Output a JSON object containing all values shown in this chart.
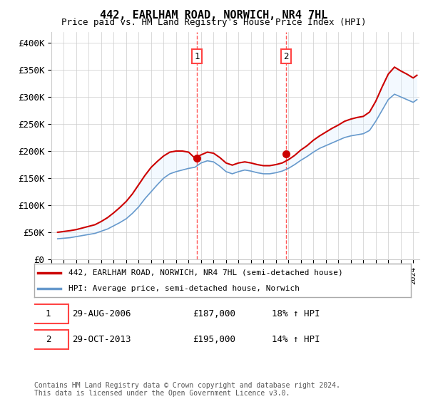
{
  "title": "442, EARLHAM ROAD, NORWICH, NR4 7HL",
  "subtitle": "Price paid vs. HM Land Registry's House Price Index (HPI)",
  "ylabel_ticks": [
    "£0",
    "£50K",
    "£100K",
    "£150K",
    "£200K",
    "£250K",
    "£300K",
    "£350K",
    "£400K"
  ],
  "ytick_values": [
    0,
    50000,
    100000,
    150000,
    200000,
    250000,
    300000,
    350000,
    400000
  ],
  "ylim": [
    0,
    420000
  ],
  "sale1_date_x": 2006.66,
  "sale1_price": 187000,
  "sale1_label": "1",
  "sale1_text": "29-AUG-2006",
  "sale1_amount": "£187,000",
  "sale1_hpi": "18% ↑ HPI",
  "sale2_date_x": 2013.83,
  "sale2_price": 195000,
  "sale2_label": "2",
  "sale2_text": "29-OCT-2013",
  "sale2_amount": "£195,000",
  "sale2_hpi": "14% ↑ HPI",
  "line1_label": "442, EARLHAM ROAD, NORWICH, NR4 7HL (semi-detached house)",
  "line2_label": "HPI: Average price, semi-detached house, Norwich",
  "line1_color": "#cc0000",
  "line2_color": "#6699cc",
  "shaded_color": "#ddeeff",
  "vline_color": "#ff4444",
  "marker_color": "#cc0000",
  "footnote": "Contains HM Land Registry data © Crown copyright and database right 2024.\nThis data is licensed under the Open Government Licence v3.0.",
  "xlim_start": 1995.0,
  "xlim_end": 2024.5,
  "background_color": "#ffffff",
  "grid_color": "#cccccc"
}
